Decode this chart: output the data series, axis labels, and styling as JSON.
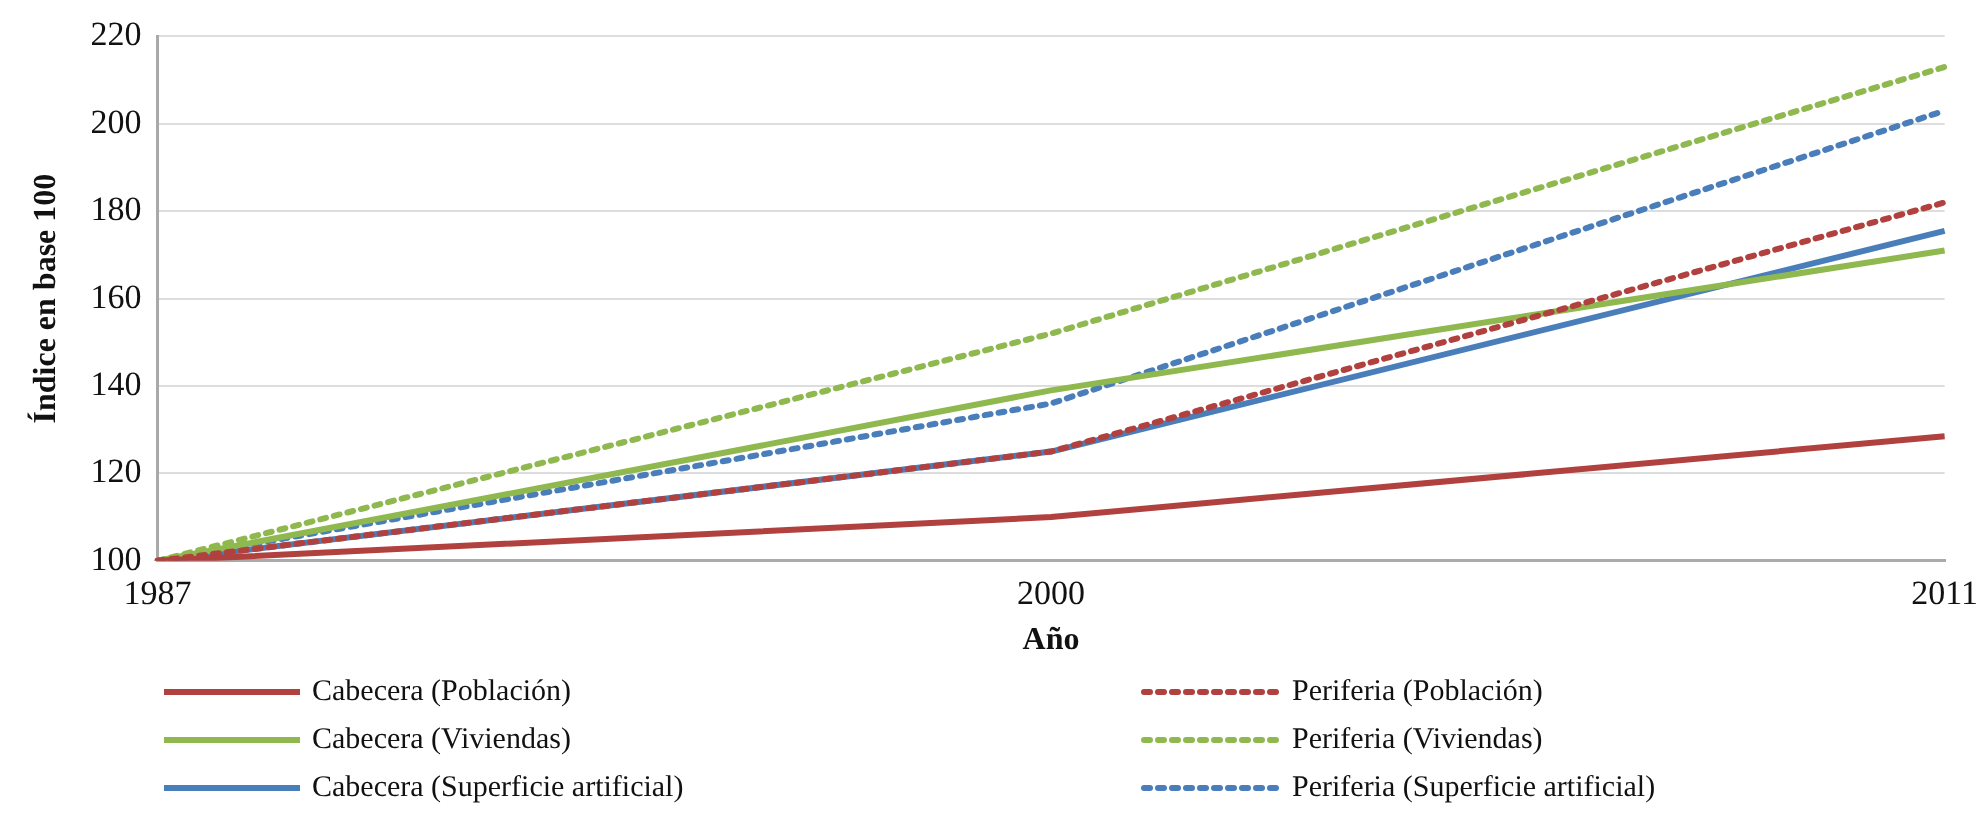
{
  "chart_data": {
    "type": "line",
    "xlabel": "Año",
    "ylabel": "Índice en base 100",
    "categories": [
      "1987",
      "2000",
      "2011"
    ],
    "ylim": [
      100,
      220
    ],
    "yticks": [
      100,
      120,
      140,
      160,
      180,
      200,
      220
    ],
    "grid": "y",
    "legend": "bottom",
    "marker": "none",
    "series": [
      {
        "name": "Cabecera (Población)",
        "color": "#b0413e",
        "line_style": "solid",
        "values": [
          100,
          110,
          128.5
        ]
      },
      {
        "name": "Periferia (Población)",
        "color": "#b0413e",
        "line_style": "dotted",
        "values": [
          100,
          125,
          182
        ]
      },
      {
        "name": "Cabecera (Viviendas)",
        "color": "#8fb84f",
        "line_style": "solid",
        "values": [
          100,
          139,
          171
        ]
      },
      {
        "name": "Periferia (Viviendas)",
        "color": "#8fb84f",
        "line_style": "dotted",
        "values": [
          100,
          152,
          213
        ]
      },
      {
        "name": "Cabecera (Superficie artificial)",
        "color": "#4a7ebb",
        "line_style": "solid",
        "values": [
          100,
          125,
          175.5
        ]
      },
      {
        "name": "Periferia (Superficie artificial)",
        "color": "#4a7ebb",
        "line_style": "dotted",
        "values": [
          100,
          136,
          203
        ]
      }
    ]
  }
}
